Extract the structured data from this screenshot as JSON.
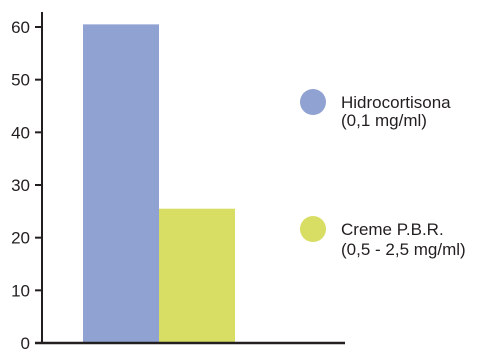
{
  "chart_data": {
    "type": "bar",
    "categories": [
      "Hidrocortisona (0,1 mg/ml)",
      "Creme P.B.R. (0,5 - 2,5 mg/ml)"
    ],
    "values": [
      60.5,
      25.5
    ],
    "ylim": [
      0,
      60
    ],
    "yticks": [
      0,
      10,
      20,
      30,
      40,
      50,
      60
    ],
    "grid": false,
    "legend_position": "right",
    "legend": [
      {
        "line1": "Hidrocortisona",
        "line2": "(0,1 mg/ml)",
        "color": "#90a2d1"
      },
      {
        "line1": "Creme P.B.R.",
        "line2": "(0,5 - 2,5 mg/ml)",
        "color": "#d8dd63"
      }
    ],
    "colors": {
      "axis": "#231f20"
    }
  }
}
